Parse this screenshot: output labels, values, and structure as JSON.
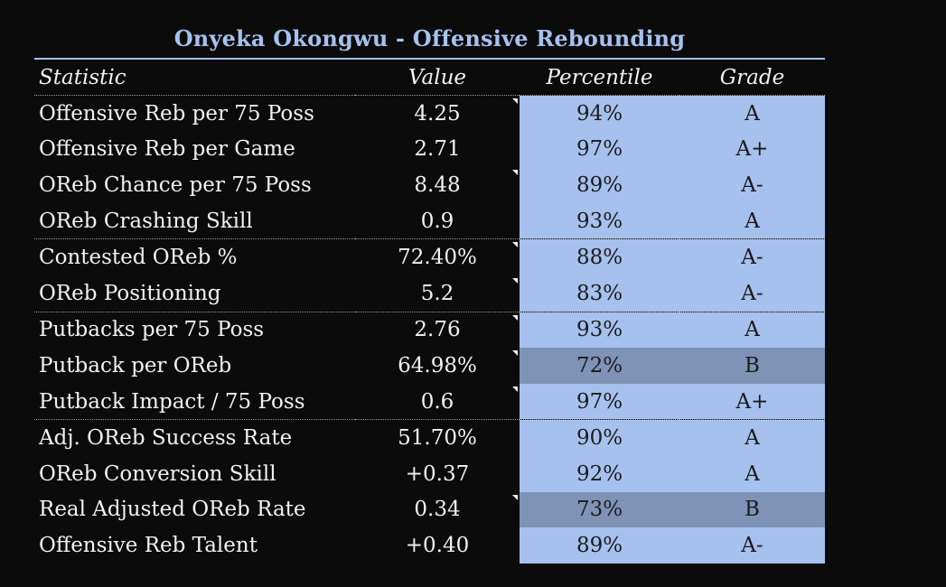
{
  "title": "Onyeka Okongwu - Offensive Rebounding",
  "colors": {
    "background": "#0b0b0b",
    "accent": "#a6c1ee",
    "tier_b_fill": "#7f93b6"
  },
  "headers": {
    "statistic": "Statistic",
    "value": "Value",
    "percentile": "Percentile",
    "grade": "Grade"
  },
  "rows": [
    {
      "stat": "Offensive Reb per 75 Poss",
      "value": "4.25",
      "percentile": "94%",
      "grade": "A"
    },
    {
      "stat": "Offensive Reb per Game",
      "value": "2.71",
      "percentile": "97%",
      "grade": "A+"
    },
    {
      "stat": "OReb Chance per 75 Poss",
      "value": "8.48",
      "percentile": "89%",
      "grade": "A-"
    },
    {
      "stat": "OReb Crashing Skill",
      "value": "0.9",
      "percentile": "93%",
      "grade": "A"
    },
    {
      "stat": "Contested OReb %",
      "value": "72.40%",
      "percentile": "88%",
      "grade": "A-"
    },
    {
      "stat": "OReb Positioning",
      "value": "5.2",
      "percentile": "83%",
      "grade": "A-"
    },
    {
      "stat": "Putbacks per 75 Poss",
      "value": "2.76",
      "percentile": "93%",
      "grade": "A"
    },
    {
      "stat": "Putback per OReb",
      "value": "64.98%",
      "percentile": "72%",
      "grade": "B"
    },
    {
      "stat": "Putback Impact / 75 Poss",
      "value": "0.6",
      "percentile": "97%",
      "grade": "A+"
    },
    {
      "stat": "Adj. OReb Success Rate",
      "value": "51.70%",
      "percentile": "90%",
      "grade": "A"
    },
    {
      "stat": "OReb Conversion Skill",
      "value": "+0.37",
      "percentile": "92%",
      "grade": "A"
    },
    {
      "stat": "Real Adjusted OReb Rate",
      "value": "0.34",
      "percentile": "73%",
      "grade": "B"
    },
    {
      "stat": "Offensive Reb Talent",
      "value": "+0.40",
      "percentile": "89%",
      "grade": "A-"
    }
  ]
}
